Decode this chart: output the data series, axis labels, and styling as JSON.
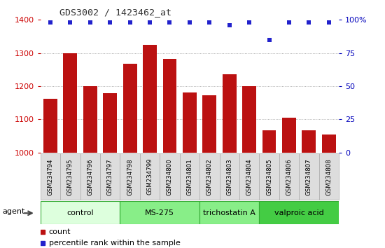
{
  "title": "GDS3002 / 1423462_at",
  "samples": [
    "GSM234794",
    "GSM234795",
    "GSM234796",
    "GSM234797",
    "GSM234798",
    "GSM234799",
    "GSM234800",
    "GSM234801",
    "GSM234802",
    "GSM234803",
    "GSM234804",
    "GSM234805",
    "GSM234806",
    "GSM234807",
    "GSM234808"
  ],
  "counts": [
    1163,
    1300,
    1200,
    1178,
    1268,
    1325,
    1282,
    1180,
    1172,
    1235,
    1200,
    1068,
    1105,
    1068,
    1055
  ],
  "percentiles": [
    98,
    98,
    98,
    98,
    98,
    98,
    98,
    98,
    98,
    96,
    98,
    85,
    98,
    98,
    98
  ],
  "bar_color": "#bb1111",
  "dot_color": "#2222cc",
  "ylim_left": [
    1000,
    1400
  ],
  "ylim_right": [
    0,
    100
  ],
  "yticks_left": [
    1000,
    1100,
    1200,
    1300,
    1400
  ],
  "yticks_right": [
    0,
    25,
    50,
    75,
    100
  ],
  "groups": [
    {
      "label": "control",
      "start": 0,
      "end": 4,
      "color": "#ddffdd"
    },
    {
      "label": "MS-275",
      "start": 4,
      "end": 8,
      "color": "#88ee88"
    },
    {
      "label": "trichostatin A",
      "start": 8,
      "end": 11,
      "color": "#88ee88"
    },
    {
      "label": "valproic acid",
      "start": 11,
      "end": 15,
      "color": "#44cc44"
    }
  ],
  "agent_label": "agent",
  "legend_count_label": "count",
  "legend_pct_label": "percentile rank within the sample",
  "grid_color": "#999999",
  "left_axis_color": "#cc0000",
  "right_axis_color": "#0000bb",
  "xlabel_bg": "#dddddd",
  "xlabel_border": "#aaaaaa"
}
